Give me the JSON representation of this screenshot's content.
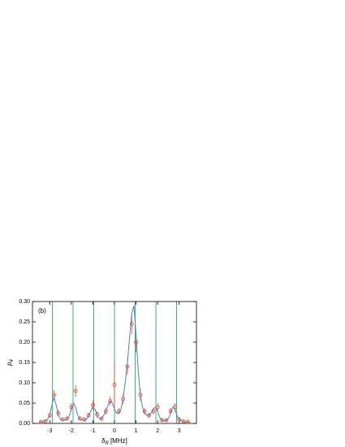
{
  "chart_data": {
    "type": "scatter",
    "annotation": "(b)",
    "ylabel": "p",
    "ylabel_subscript": "4",
    "xlabel": "δ",
    "xlabel_subscript": "R",
    "xlabel_unit": "[MHz]",
    "xlim": [
      -3.8,
      3.8
    ],
    "ylim": [
      0,
      0.3
    ],
    "xticks": [
      -3,
      -2,
      -1,
      0,
      1,
      2,
      3
    ],
    "yticks": [
      {
        "value": 0,
        "label": "0.00"
      },
      {
        "value": 0.05,
        "label": "0.05"
      },
      {
        "value": 0.1,
        "label": "0.10"
      },
      {
        "value": 0.15,
        "label": "0.15"
      },
      {
        "value": 0.2,
        "label": "0.20"
      },
      {
        "value": 0.25,
        "label": "0.25"
      },
      {
        "value": 0.3,
        "label": "0.30"
      }
    ],
    "vlines": {
      "color": "#3cb371",
      "x": [
        -2.88,
        -1.92,
        -0.96,
        0,
        0.96,
        1.92,
        2.88
      ]
    },
    "series": [
      {
        "kind": "points",
        "color": "#e8401c",
        "error_color": "#d9531e",
        "x": [
          -3.4,
          -3.2,
          -3.0,
          -2.8,
          -2.6,
          -2.4,
          -2.2,
          -2.0,
          -1.8,
          -1.6,
          -1.4,
          -1.2,
          -1.0,
          -0.8,
          -0.6,
          -0.4,
          -0.2,
          0.0,
          0.2,
          0.4,
          0.6,
          0.8,
          1.0,
          1.2,
          1.4,
          1.6,
          1.8,
          2.0,
          2.2,
          2.4,
          2.6,
          2.8,
          3.0,
          3.2,
          3.4
        ],
        "values": [
          0.004,
          0.005,
          0.02,
          0.07,
          0.025,
          0.01,
          0.012,
          0.04,
          0.08,
          0.012,
          0.01,
          0.02,
          0.045,
          0.022,
          0.012,
          0.03,
          0.055,
          0.095,
          0.03,
          0.06,
          0.14,
          0.245,
          0.2,
          0.07,
          0.03,
          0.02,
          0.03,
          0.04,
          0.008,
          0.008,
          0.03,
          0.04,
          0.01,
          0.005,
          0.004
        ],
        "errors": [
          0.003,
          0.003,
          0.006,
          0.012,
          0.008,
          0.004,
          0.005,
          0.01,
          0.015,
          0.005,
          0.004,
          0.006,
          0.012,
          0.008,
          0.005,
          0.008,
          0.012,
          0.055,
          0.008,
          0.012,
          0.02,
          0.025,
          0.025,
          0.015,
          0.008,
          0.006,
          0.008,
          0.01,
          0.004,
          0.004,
          0.008,
          0.01,
          0.005,
          0.003,
          0.003
        ]
      },
      {
        "kind": "line",
        "color": "#4a7fd0",
        "x": [
          -3.5,
          -3.4,
          -3.3,
          -3.2,
          -3.1,
          -3.0,
          -2.9,
          -2.8,
          -2.7,
          -2.6,
          -2.5,
          -2.4,
          -2.3,
          -2.2,
          -2.1,
          -2.0,
          -1.9,
          -1.8,
          -1.7,
          -1.6,
          -1.5,
          -1.4,
          -1.3,
          -1.2,
          -1.1,
          -1.0,
          -0.9,
          -0.8,
          -0.7,
          -0.6,
          -0.5,
          -0.4,
          -0.3,
          -0.2,
          -0.1,
          0.0,
          0.1,
          0.2,
          0.3,
          0.4,
          0.5,
          0.6,
          0.7,
          0.8,
          0.9,
          1.0,
          1.1,
          1.2,
          1.3,
          1.4,
          1.5,
          1.6,
          1.7,
          1.8,
          1.9,
          2.0,
          2.1,
          2.2,
          2.3,
          2.4,
          2.5,
          2.6,
          2.7,
          2.8,
          2.9,
          3.0,
          3.1,
          3.2,
          3.3,
          3.4,
          3.5
        ],
        "values": [
          0.003,
          0.003,
          0.004,
          0.006,
          0.01,
          0.02,
          0.045,
          0.065,
          0.045,
          0.02,
          0.01,
          0.008,
          0.008,
          0.01,
          0.018,
          0.035,
          0.05,
          0.04,
          0.02,
          0.01,
          0.008,
          0.008,
          0.01,
          0.018,
          0.03,
          0.04,
          0.035,
          0.02,
          0.012,
          0.012,
          0.02,
          0.03,
          0.045,
          0.055,
          0.05,
          0.035,
          0.025,
          0.025,
          0.035,
          0.06,
          0.1,
          0.15,
          0.21,
          0.27,
          0.29,
          0.22,
          0.13,
          0.07,
          0.04,
          0.025,
          0.02,
          0.02,
          0.025,
          0.035,
          0.04,
          0.03,
          0.015,
          0.008,
          0.006,
          0.008,
          0.012,
          0.025,
          0.04,
          0.035,
          0.02,
          0.01,
          0.006,
          0.004,
          0.003,
          0.003,
          0.003
        ]
      }
    ]
  }
}
